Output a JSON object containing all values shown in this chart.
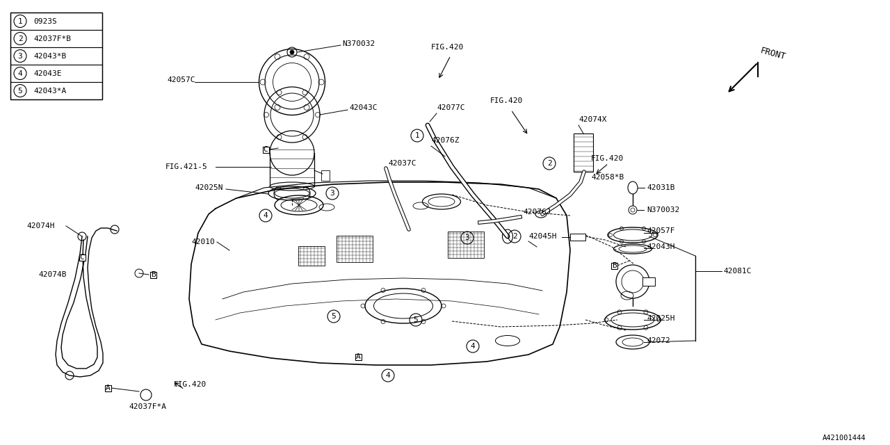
{
  "bg_color": "#ffffff",
  "line_color": "#000000",
  "fig_id": "A421001444",
  "legend": [
    {
      "num": "1",
      "code": "0923S"
    },
    {
      "num": "2",
      "code": "42037F*B"
    },
    {
      "num": "3",
      "code": "42043*B"
    },
    {
      "num": "4",
      "code": "42043E"
    },
    {
      "num": "5",
      "code": "42043*A"
    }
  ]
}
